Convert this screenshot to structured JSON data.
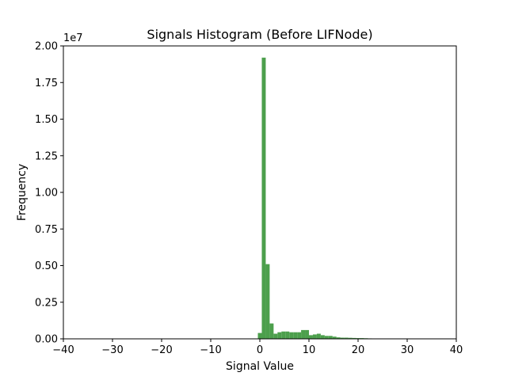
{
  "chart_data": {
    "type": "bar",
    "title": "Signals Histogram (Before LIFNode)",
    "xlabel": "Signal Value",
    "ylabel": "Frequency",
    "y_multiplier_label": "1e7",
    "xlim": [
      -40,
      40
    ],
    "ylim": [
      0,
      2.0
    ],
    "xticks": [
      "−40",
      "−30",
      "−20",
      "−10",
      "0",
      "10",
      "20",
      "30",
      "40"
    ],
    "yticks": [
      "0.00",
      "0.25",
      "0.50",
      "0.75",
      "1.00",
      "1.25",
      "1.50",
      "1.75",
      "2.00"
    ],
    "grid": false,
    "legend": "none",
    "bar_color": "#4c9f4c",
    "bin_width": 0.8,
    "bins_start": [
      -0.4,
      0.4,
      1.2,
      2.0,
      2.8,
      3.6,
      4.4,
      5.2,
      6.0,
      6.8,
      7.6,
      8.4,
      9.2,
      10.0,
      10.8,
      11.6,
      12.4,
      13.2,
      14.0,
      14.8,
      15.6,
      16.4,
      17.2,
      18.0,
      18.8,
      19.6,
      20.4,
      21.2,
      22.0
    ],
    "values": [
      0.04,
      1.92,
      0.51,
      0.105,
      0.035,
      0.045,
      0.05,
      0.05,
      0.045,
      0.045,
      0.045,
      0.06,
      0.06,
      0.025,
      0.03,
      0.035,
      0.025,
      0.02,
      0.02,
      0.015,
      0.01,
      0.008,
      0.008,
      0.007,
      0.006,
      0.005,
      0.005,
      0.004,
      0.003
    ]
  }
}
